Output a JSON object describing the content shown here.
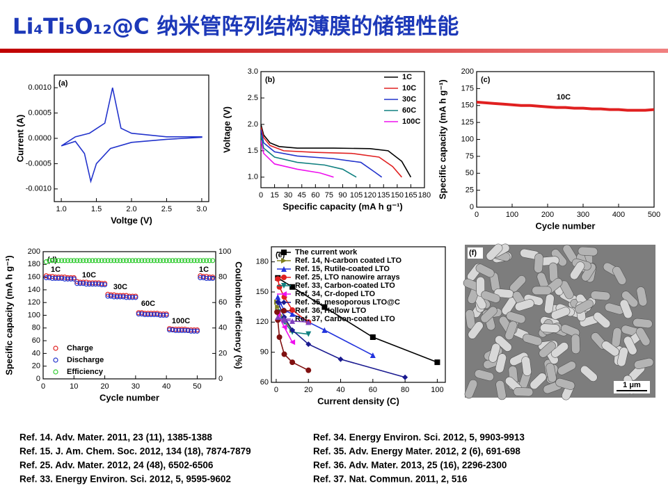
{
  "title": "Li₄Ti₅O₁₂@C 纳米管阵列结构薄膜的储锂性能",
  "chart_data": [
    {
      "type": "line",
      "label": "(a)",
      "xlabel": "Voltge (V)",
      "ylabel": "Current (A)",
      "xlim": [
        0.9,
        3.1
      ],
      "xticks": [
        {
          "value": 1,
          "label": "1.0"
        },
        1.5,
        {
          "value": 2,
          "label": "2.0"
        },
        2.5,
        {
          "value": 3,
          "label": "3.0"
        }
      ],
      "ylim": [
        -0.00125,
        0.00125
      ],
      "yticks": [
        {
          "value": -0.001,
          "label": "-0.0010"
        },
        {
          "value": -0.0005,
          "label": "-0.0005"
        },
        {
          "value": 0,
          "label": "0.0000"
        },
        {
          "value": 0.0005,
          "label": "0.0005"
        },
        {
          "value": 0.001,
          "label": "0.0010"
        }
      ],
      "series": [
        {
          "color": "#2233cc",
          "x": [
            1.0,
            1.2,
            1.33,
            1.42,
            1.5,
            1.7,
            2.0,
            2.5,
            3.0,
            3.0,
            2.5,
            2.0,
            1.85,
            1.73,
            1.62,
            1.4,
            1.2,
            1.0
          ],
          "values": [
            -0.00015,
            -6e-05,
            -0.0003,
            -0.00085,
            -0.0005,
            -0.0002,
            -8e-05,
            -2e-05,
            2e-05,
            3e-05,
            3e-05,
            0.0001,
            0.0002,
            0.001,
            0.0003,
            0.0001,
            3e-05,
            -0.00015
          ]
        }
      ]
    },
    {
      "type": "line",
      "label": "(b)",
      "xlabel": "Specific capacity (mA h g⁻¹)",
      "ylabel": "Voltage (V)",
      "xlim": [
        0,
        180
      ],
      "xticks": [
        0,
        15,
        30,
        45,
        60,
        75,
        90,
        105,
        120,
        135,
        150,
        165,
        180
      ],
      "ylim": [
        0.8,
        3.0
      ],
      "yticks": [
        {
          "value": 1,
          "label": "1.0"
        },
        1.5,
        {
          "value": 2,
          "label": "2.0"
        },
        2.5,
        {
          "value": 3,
          "label": "3.0"
        }
      ],
      "legend": "upper right",
      "series": [
        {
          "name": "1C",
          "color": "#000000",
          "x": [
            0,
            3,
            10,
            20,
            40,
            80,
            120,
            140,
            155,
            165
          ],
          "values": [
            2.0,
            1.8,
            1.65,
            1.58,
            1.55,
            1.55,
            1.54,
            1.5,
            1.3,
            1.0
          ]
        },
        {
          "name": "10C",
          "color": "#e02020",
          "x": [
            0,
            3,
            10,
            25,
            60,
            100,
            130,
            145,
            155
          ],
          "values": [
            1.95,
            1.75,
            1.6,
            1.5,
            1.47,
            1.45,
            1.38,
            1.2,
            1.0
          ]
        },
        {
          "name": "30C",
          "color": "#2233cc",
          "x": [
            0,
            3,
            15,
            40,
            80,
            110,
            125,
            133
          ],
          "values": [
            1.9,
            1.65,
            1.48,
            1.4,
            1.35,
            1.28,
            1.1,
            1.0
          ]
        },
        {
          "name": "60C",
          "color": "#108080",
          "x": [
            0,
            3,
            15,
            40,
            70,
            90,
            105
          ],
          "values": [
            1.8,
            1.55,
            1.38,
            1.28,
            1.23,
            1.15,
            1.0
          ]
        },
        {
          "name": "100C",
          "color": "#ee10ee",
          "x": [
            0,
            3,
            15,
            40,
            65,
            80
          ],
          "values": [
            1.7,
            1.45,
            1.25,
            1.15,
            1.08,
            1.0
          ]
        }
      ]
    },
    {
      "type": "line",
      "label": "(c)",
      "xlabel": "Cycle number",
      "ylabel": "Specific capacity (mA h g⁻¹)",
      "xlim": [
        0,
        500
      ],
      "xticks": [
        0,
        100,
        200,
        300,
        400,
        500
      ],
      "ylim": [
        0,
        200
      ],
      "yticks": [
        0,
        25,
        50,
        75,
        100,
        125,
        150,
        175,
        200
      ],
      "annotations": [
        "10C"
      ],
      "series": [
        {
          "color": "#e02020",
          "x": [
            0,
            25,
            50,
            75,
            100,
            125,
            150,
            175,
            200,
            225,
            250,
            275,
            300,
            325,
            350,
            375,
            400,
            425,
            450,
            475,
            500
          ],
          "values": [
            155,
            154,
            153,
            152,
            151,
            150,
            150,
            149,
            148,
            147,
            147,
            146,
            146,
            145,
            145,
            144,
            144,
            143,
            143,
            143,
            144
          ]
        }
      ]
    },
    {
      "type": "scatter",
      "label": "(d)",
      "xlabel": "Cycle number",
      "ylabel": "Specific capacity (mA h g⁻¹)",
      "y2label": "Coulombic efficiency (%)",
      "xlim": [
        0,
        56
      ],
      "xticks": [
        0,
        10,
        20,
        30,
        40,
        50
      ],
      "ylim": [
        0,
        200
      ],
      "yticks": [
        0,
        20,
        40,
        60,
        80,
        100,
        120,
        140,
        160,
        180,
        200
      ],
      "y2lim": [
        0,
        100
      ],
      "y2ticks": [
        0,
        20,
        40,
        60,
        80,
        100
      ],
      "legend": "lower left",
      "annotations": [
        "1C",
        "10C",
        "30C",
        "60C",
        "100C",
        "1C"
      ],
      "x": [
        1,
        2,
        3,
        4,
        5,
        6,
        7,
        8,
        9,
        10,
        11,
        12,
        13,
        14,
        15,
        16,
        17,
        18,
        19,
        20,
        21,
        22,
        23,
        24,
        25,
        26,
        27,
        28,
        29,
        30,
        31,
        32,
        33,
        34,
        35,
        36,
        37,
        38,
        39,
        40,
        41,
        42,
        43,
        44,
        45,
        46,
        47,
        48,
        49,
        50,
        51,
        52,
        53,
        54,
        55
      ],
      "series": [
        {
          "name": "Charge",
          "color": "#e02020",
          "values": [
            162,
            161,
            161,
            160,
            160,
            160,
            160,
            159,
            159,
            159,
            153,
            152,
            152,
            152,
            151,
            151,
            151,
            151,
            150,
            150,
            133,
            132,
            132,
            131,
            131,
            131,
            131,
            130,
            130,
            130,
            104,
            104,
            103,
            103,
            103,
            103,
            103,
            102,
            102,
            102,
            79,
            78,
            78,
            78,
            78,
            78,
            77,
            77,
            77,
            77,
            162,
            161,
            161,
            160,
            160
          ]
        },
        {
          "name": "Discharge",
          "color": "#2233cc",
          "values": [
            159,
            159,
            158,
            158,
            158,
            158,
            157,
            157,
            157,
            157,
            150,
            150,
            150,
            149,
            149,
            149,
            149,
            149,
            148,
            148,
            130,
            130,
            129,
            129,
            129,
            129,
            128,
            128,
            128,
            128,
            102,
            102,
            101,
            101,
            101,
            101,
            101,
            100,
            100,
            100,
            77,
            77,
            76,
            76,
            76,
            76,
            76,
            75,
            75,
            75,
            159,
            159,
            158,
            158,
            158
          ]
        },
        {
          "name": "Efficiency",
          "color": "#33cc33",
          "axis": "y2",
          "values": [
            92,
            93,
            93,
            93,
            93,
            93,
            93,
            93,
            93,
            93,
            93,
            93,
            93,
            93,
            93,
            93,
            93,
            93,
            93,
            93,
            93,
            93,
            93,
            93,
            93,
            93,
            93,
            93,
            93,
            93,
            93,
            93,
            93,
            93,
            93,
            93,
            93,
            93,
            93,
            93,
            93,
            93,
            93,
            93,
            93,
            93,
            93,
            93,
            93,
            93,
            93,
            93,
            93,
            93,
            93
          ]
        }
      ]
    },
    {
      "type": "line",
      "markers": true,
      "label": "(e)",
      "xlabel": "Current density (C)",
      "xlim": [
        -3,
        105
      ],
      "xticks": [
        0,
        20,
        40,
        60,
        80,
        100
      ],
      "ylim": [
        60,
        195
      ],
      "yticks": [
        60,
        90,
        120,
        150,
        180
      ],
      "legend": "upper left",
      "series": [
        {
          "name": "The current work",
          "color": "#000000",
          "marker": "square",
          "x": [
            1,
            10,
            30,
            60,
            100
          ],
          "values": [
            164,
            155,
            135,
            105,
            80
          ]
        },
        {
          "name": "Ref. 14, N-carbon coated LTO",
          "color": "#808020",
          "marker": "triangle-right",
          "x": [
            0.5,
            1,
            2,
            5,
            10
          ],
          "values": [
            140,
            135,
            130,
            122,
            112
          ]
        },
        {
          "name": "Ref. 15, Rutile-coated LTO",
          "color": "#2233dd",
          "marker": "triangle",
          "x": [
            1,
            2,
            5,
            10,
            20,
            30,
            60
          ],
          "values": [
            145,
            140,
            132,
            128,
            120,
            112,
            87
          ]
        },
        {
          "name": "Ref. 25, LTO nanowire arrays",
          "color": "#e02020",
          "marker": "circle",
          "x": [
            1,
            2,
            5,
            10,
            20
          ],
          "values": [
            163,
            155,
            145,
            132,
            120
          ]
        },
        {
          "name": "Ref. 33, Carbon-coated LTO",
          "color": "#108080",
          "marker": "triangle-down",
          "x": [
            1,
            5,
            10,
            20
          ],
          "values": [
            130,
            120,
            110,
            108
          ]
        },
        {
          "name": "Ref. 34, Cr-doped LTO",
          "color": "#ee10ee",
          "marker": "triangle-left",
          "x": [
            1,
            5,
            10
          ],
          "values": [
            128,
            115,
            100
          ]
        },
        {
          "name": "Ref. 35, mesoporous LTO@C",
          "color": "#1a1a90",
          "marker": "diamond",
          "x": [
            1,
            5,
            10,
            20,
            40,
            80
          ],
          "values": [
            140,
            125,
            112,
            98,
            83,
            65
          ]
        },
        {
          "name": "Ref. 36, Hollow LTO",
          "color": "#801010",
          "marker": "circle",
          "x": [
            0.5,
            1,
            2,
            5,
            10,
            20
          ],
          "values": [
            130,
            122,
            105,
            88,
            80,
            72
          ]
        },
        {
          "name": "Ref. 37, Carbon-coated LTO",
          "color": "#8040c0",
          "marker": "triangle",
          "x": [
            1,
            5,
            10,
            20
          ],
          "values": [
            125,
            122,
            121,
            120
          ]
        }
      ]
    },
    {
      "type": "image",
      "label": "(f)",
      "scale_bar": "1 μm"
    }
  ],
  "references": {
    "left": [
      "Ref. 14. Adv. Mater. 2011, 23 (11), 1385-1388",
      "Ref. 15. J. Am. Chem. Soc. 2012, 134 (18), 7874-7879",
      "Ref. 25. Adv. Mater. 2012, 24 (48), 6502-6506",
      "Ref. 33. Energy Environ. Sci. 2012, 5, 9595-9602"
    ],
    "right": [
      "Ref. 34. Energy Environ. Sci. 2012, 5, 9903-9913",
      "Ref. 35. Adv. Energy Mater. 2012, 2 (6), 691-698",
      "Ref. 36. Adv. Mater. 2013, 25 (16), 2296-2300",
      "Ref. 37. Nat. Commun. 2011, 2, 516"
    ]
  }
}
